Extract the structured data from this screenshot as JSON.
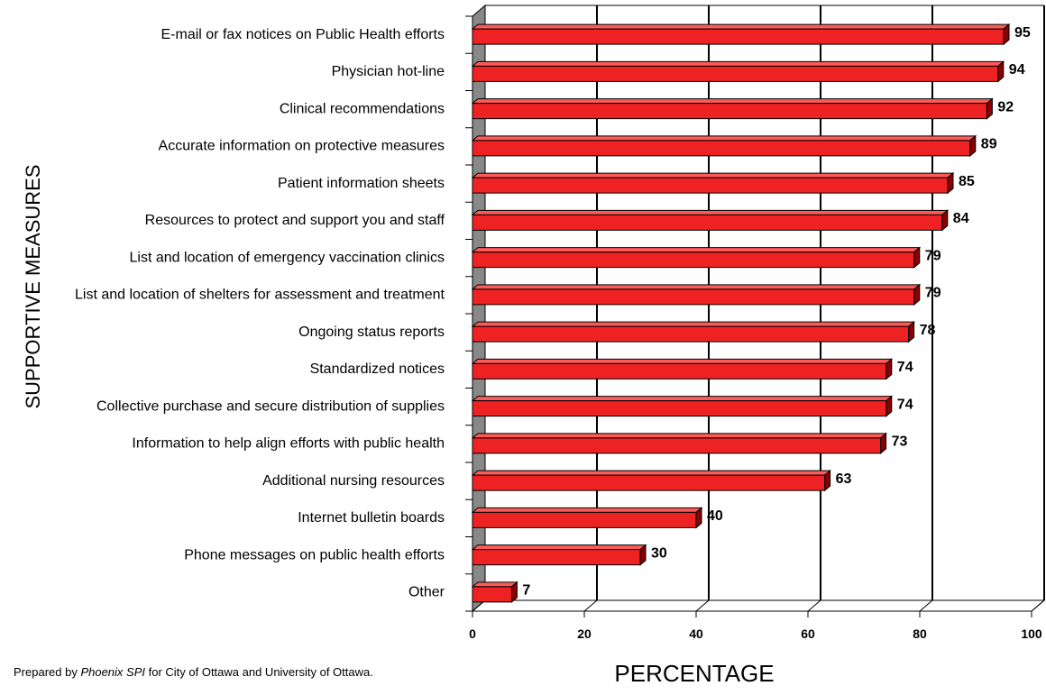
{
  "chart_data": {
    "type": "bar",
    "orientation": "horizontal",
    "categories": [
      "E-mail or fax notices on Public Health efforts",
      "Physician hot-line",
      "Clinical recommendations",
      "Accurate information on protective measures",
      "Patient information sheets",
      "Resources to protect and support you and staff",
      "List and location of emergency vaccination clinics",
      "List and location of shelters for assessment and treatment",
      "Ongoing status reports",
      "Standardized notices",
      "Collective purchase and secure distribution of supplies",
      "Information to help align efforts with public health",
      "Additional nursing resources",
      "Internet bulletin boards",
      "Phone messages on public health efforts",
      "Other"
    ],
    "values": [
      95,
      94,
      92,
      89,
      85,
      84,
      79,
      79,
      78,
      74,
      74,
      73,
      63,
      40,
      30,
      7
    ],
    "value_labels": [
      "95",
      "94",
      "92",
      "89",
      "85",
      "84",
      "79",
      "79",
      "78",
      "74",
      "74",
      "73",
      "63",
      "40",
      "30",
      "7"
    ],
    "xlabel": "PERCENTAGE",
    "ylabel": "SUPPORTIVE MEASURES",
    "xlim": [
      0,
      100
    ],
    "xticks": [
      "0",
      "20",
      "40",
      "60",
      "80",
      "100"
    ],
    "grid": "vertical",
    "style": "3d",
    "colors": {
      "bar_face": "#ee2222",
      "bar_side": "#8b0000",
      "bar_top": "#ff5a5a",
      "wall": "#888888",
      "axis": "#000000"
    }
  },
  "footnote": {
    "prefix": "Prepared by ",
    "emphasis": "Phoenix SPI",
    "suffix": " for City of Ottawa and University of Ottawa."
  }
}
